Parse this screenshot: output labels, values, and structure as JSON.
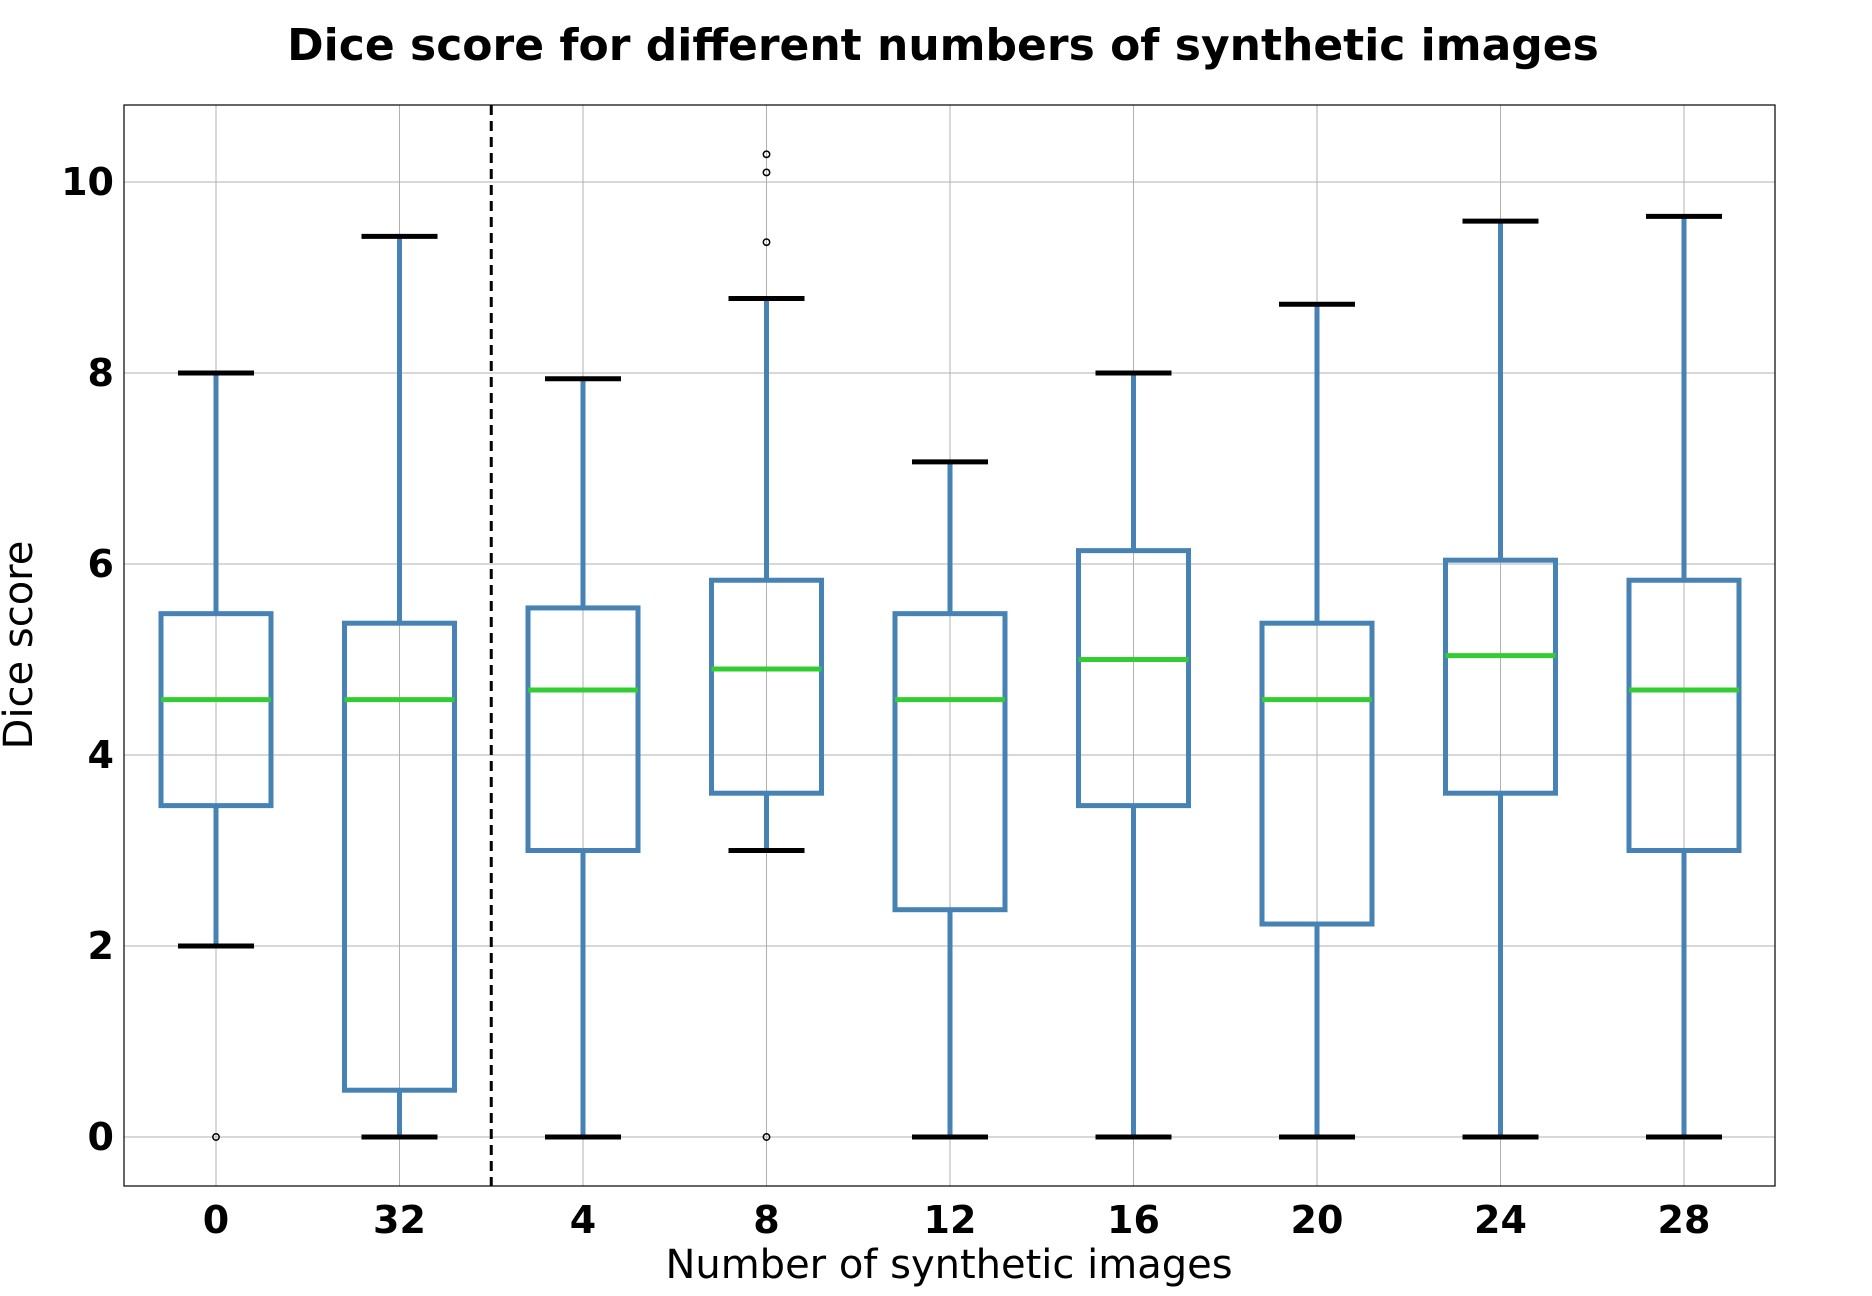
{
  "chart_data": {
    "type": "box",
    "title": "Dice score for different numbers of synthetic images",
    "xlabel": "Number of synthetic images",
    "ylabel": "Dice score",
    "categories": [
      "0",
      "32",
      "4",
      "8",
      "12",
      "16",
      "20",
      "24",
      "28"
    ],
    "ylim": [
      -0.5,
      10.8
    ],
    "yticks": [
      0,
      2,
      4,
      6,
      8,
      10
    ],
    "grid": true,
    "separator_after_index": 1,
    "boxes": [
      {
        "label": "0",
        "whisker_low": 2.0,
        "q1": 3.47,
        "median": 4.58,
        "q3": 5.48,
        "whisker_high": 8.0,
        "outliers": [
          0.0
        ]
      },
      {
        "label": "32",
        "whisker_low": 0.0,
        "q1": 0.49,
        "median": 4.58,
        "q3": 5.38,
        "whisker_high": 9.43,
        "outliers": []
      },
      {
        "label": "4",
        "whisker_low": 0.0,
        "q1": 3.0,
        "median": 4.68,
        "q3": 5.54,
        "whisker_high": 7.94,
        "outliers": []
      },
      {
        "label": "8",
        "whisker_low": 3.0,
        "q1": 3.6,
        "median": 4.9,
        "q3": 5.83,
        "whisker_high": 8.78,
        "outliers": [
          0.0,
          9.37,
          10.1,
          10.29
        ]
      },
      {
        "label": "12",
        "whisker_low": 0.0,
        "q1": 2.38,
        "median": 4.58,
        "q3": 5.48,
        "whisker_high": 7.07,
        "outliers": []
      },
      {
        "label": "16",
        "whisker_low": 0.0,
        "q1": 3.47,
        "median": 5.0,
        "q3": 6.14,
        "whisker_high": 8.0,
        "outliers": []
      },
      {
        "label": "20",
        "whisker_low": 0.0,
        "q1": 2.23,
        "median": 4.58,
        "q3": 5.38,
        "whisker_high": 8.72,
        "outliers": []
      },
      {
        "label": "24",
        "whisker_low": 0.0,
        "q1": 3.6,
        "median": 5.04,
        "q3": 6.04,
        "whisker_high": 9.59,
        "outliers": []
      },
      {
        "label": "28",
        "whisker_low": 0.0,
        "q1": 3.0,
        "median": 4.68,
        "q3": 5.83,
        "whisker_high": 9.64,
        "outliers": []
      }
    ],
    "colors": {
      "box": "#4682b4",
      "median": "#32cd32",
      "caps": "#000000",
      "separator": "#000000"
    }
  }
}
